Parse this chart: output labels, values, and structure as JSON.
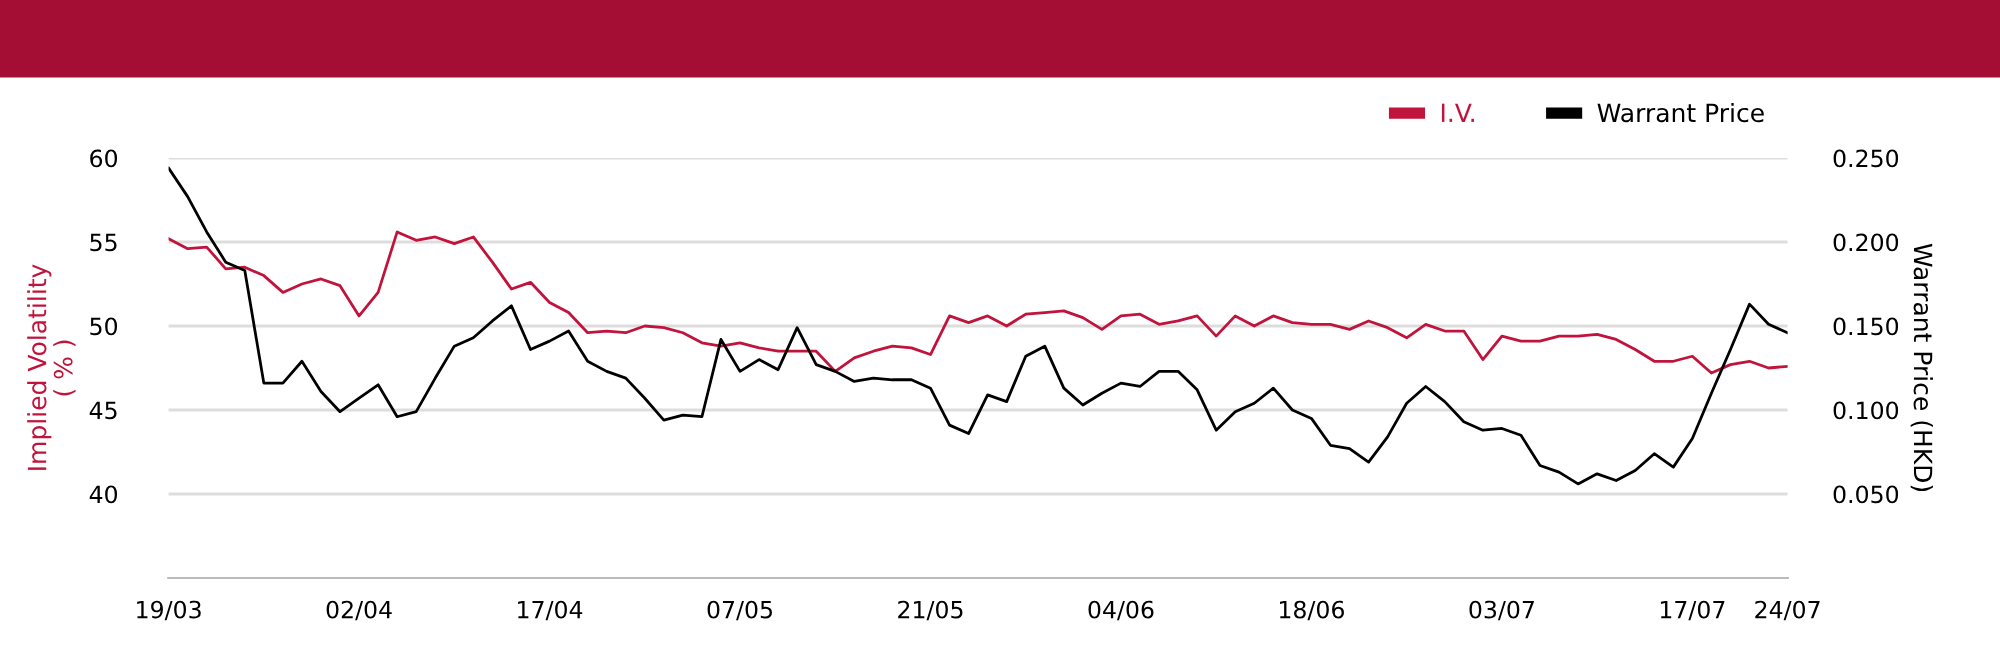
{
  "chart_data": {
    "type": "line",
    "categories": [
      "19/03",
      null,
      null,
      null,
      null,
      null,
      null,
      null,
      null,
      null,
      "02/04",
      null,
      null,
      null,
      null,
      null,
      null,
      null,
      null,
      null,
      "17/04",
      null,
      null,
      null,
      null,
      null,
      null,
      null,
      null,
      null,
      "07/05",
      null,
      null,
      null,
      null,
      null,
      null,
      null,
      null,
      null,
      "21/05",
      null,
      null,
      null,
      null,
      null,
      null,
      null,
      null,
      null,
      "04/06",
      null,
      null,
      null,
      null,
      null,
      null,
      null,
      null,
      null,
      "18/06",
      null,
      null,
      null,
      null,
      null,
      null,
      null,
      null,
      null,
      "03/07",
      null,
      null,
      null,
      null,
      null,
      null,
      null,
      null,
      null,
      "17/07",
      null,
      null,
      null,
      null,
      "24/07"
    ],
    "series": [
      {
        "name": "I.V.",
        "color": "#c0143c",
        "values": [
          55.2,
          54.6,
          54.7,
          53.4,
          53.5,
          53.0,
          52.0,
          52.5,
          52.8,
          52.4,
          50.6,
          52.0,
          55.6,
          55.1,
          55.3,
          54.9,
          55.3,
          53.8,
          52.2,
          52.6,
          51.4,
          50.8,
          49.6,
          49.7,
          49.6,
          50.0,
          49.9,
          49.6,
          49.0,
          48.8,
          49.0,
          48.7,
          48.5,
          48.5,
          48.5,
          47.3,
          48.1,
          48.5,
          48.8,
          48.7,
          48.3,
          50.6,
          50.2,
          50.6,
          50.0,
          50.7,
          50.8,
          50.9,
          50.5,
          49.8,
          50.6,
          50.7,
          50.1,
          50.3,
          50.6,
          49.4,
          50.6,
          50.0,
          50.6,
          50.2,
          50.1,
          50.1,
          49.8,
          50.3,
          49.9,
          49.3,
          50.1,
          49.7,
          49.7,
          48.0,
          49.4,
          49.1,
          49.1,
          49.4,
          49.4,
          49.5,
          49.2,
          48.6,
          47.9,
          47.9,
          48.2,
          47.2,
          47.7,
          47.9,
          47.5,
          47.6
        ]
      },
      {
        "name": "Warrant Price",
        "color": "#000000",
        "axis": "y2",
        "values": [
          0.244,
          0.227,
          0.206,
          0.188,
          0.183,
          0.116,
          0.116,
          0.129,
          0.111,
          0.099,
          0.107,
          0.115,
          0.096,
          0.099,
          0.119,
          0.138,
          0.143,
          0.153,
          0.162,
          0.136,
          0.141,
          0.147,
          0.129,
          0.123,
          0.119,
          0.107,
          0.094,
          0.097,
          0.096,
          0.142,
          0.123,
          0.13,
          0.124,
          0.149,
          0.127,
          0.123,
          0.117,
          0.119,
          0.118,
          0.118,
          0.113,
          0.091,
          0.086,
          0.109,
          0.105,
          0.132,
          0.138,
          0.113,
          0.103,
          0.11,
          0.116,
          0.114,
          0.123,
          0.123,
          0.112,
          0.088,
          0.099,
          0.104,
          0.113,
          0.1,
          0.095,
          0.079,
          0.077,
          0.069,
          0.084,
          0.104,
          0.114,
          0.105,
          0.093,
          0.088,
          0.089,
          0.085,
          0.067,
          0.063,
          0.056,
          0.062,
          0.058,
          0.064,
          0.074,
          0.066,
          0.083,
          0.11,
          0.136,
          0.163,
          0.151,
          0.146
        ]
      }
    ],
    "ylabel": "Implied Volatility\n( % )",
    "y2label": "Warrant Price (HKD)",
    "ylim": [
      35,
      60
    ],
    "yticks": [
      40,
      45,
      50,
      55,
      60
    ],
    "y2lim": [
      0,
      0.25
    ],
    "y2ticks": [
      {
        "value": 0.05,
        "label": "0.050"
      },
      {
        "value": 0.1,
        "label": "0.100"
      },
      {
        "value": 0.15,
        "label": "0.150"
      },
      {
        "value": 0.2,
        "label": "0.200"
      },
      {
        "value": 0.25,
        "label": "0.250"
      }
    ],
    "grid": "y",
    "legend": "top right"
  }
}
